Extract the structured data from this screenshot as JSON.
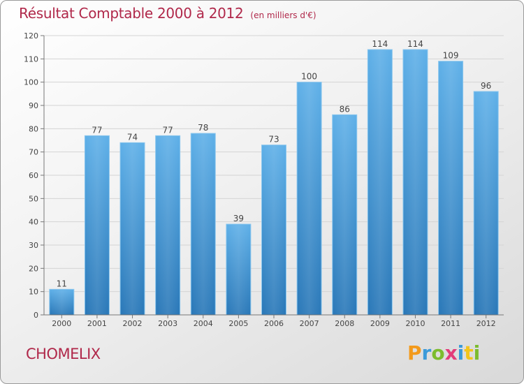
{
  "chart_data": {
    "type": "bar",
    "title": "Résultat Comptable 2000 à 2012",
    "subtitle": "(en milliers d'€)",
    "categories": [
      "2000",
      "2001",
      "2002",
      "2003",
      "2004",
      "2005",
      "2006",
      "2007",
      "2008",
      "2009",
      "2010",
      "2011",
      "2012"
    ],
    "values": [
      11,
      77,
      74,
      77,
      78,
      39,
      73,
      100,
      86,
      114,
      114,
      109,
      96
    ],
    "ylim": [
      0,
      120
    ],
    "yticks": [
      0,
      10,
      20,
      30,
      40,
      50,
      60,
      70,
      80,
      90,
      100,
      110,
      120
    ],
    "xlabel": "",
    "ylabel": "",
    "grid": true,
    "bar_color": "#4a9fdc"
  },
  "commune": "CHOMELIX",
  "brand": {
    "text": "Proxiti",
    "letters": [
      {
        "ch": "P",
        "color": "#f39a1b"
      },
      {
        "ch": "r",
        "color": "#3b9ad9"
      },
      {
        "ch": "o",
        "color": "#7cbc2e"
      },
      {
        "ch": "x",
        "color": "#e23c7a"
      },
      {
        "ch": "i",
        "color": "#3b9ad9"
      },
      {
        "ch": "t",
        "color": "#f3c51b"
      },
      {
        "ch": "i",
        "color": "#7cbc2e"
      }
    ]
  }
}
